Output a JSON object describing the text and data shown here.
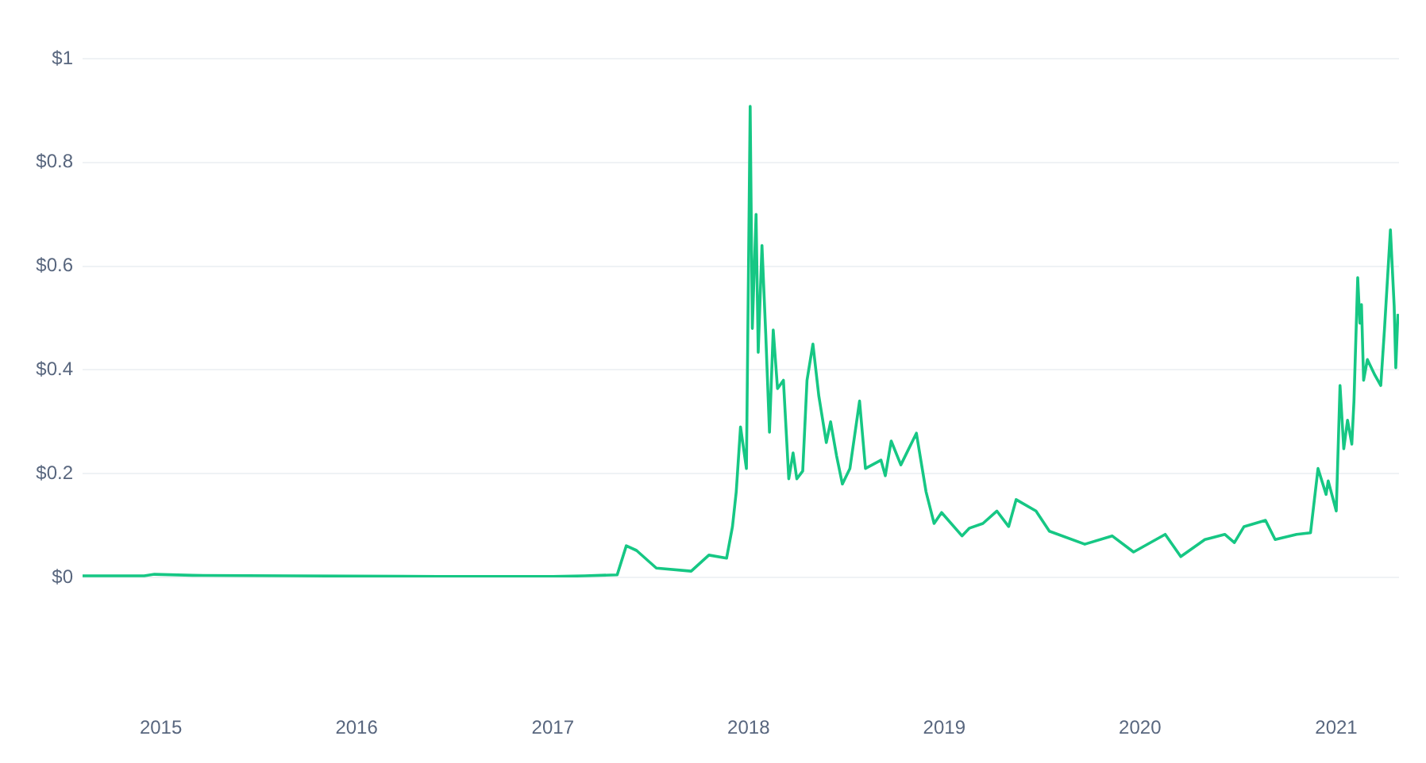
{
  "chart_data": {
    "type": "line",
    "x": [
      "2014-08-08",
      "2014-12-01",
      "2014-12-20",
      "2015-03-01",
      "2015-09-01",
      "2016-06-01",
      "2017-01-01",
      "2017-03-01",
      "2017-05-01",
      "2017-05-18",
      "2017-06-06",
      "2017-07-13",
      "2017-09-16",
      "2017-10-19",
      "2017-11-21",
      "2017-12-02",
      "2017-12-09",
      "2017-12-17",
      "2017-12-28",
      "2018-01-04",
      "2018-01-08",
      "2018-01-15",
      "2018-01-19",
      "2018-01-26",
      "2018-02-02",
      "2018-02-09",
      "2018-02-16",
      "2018-02-24",
      "2018-03-07",
      "2018-03-17",
      "2018-03-25",
      "2018-04-01",
      "2018-04-12",
      "2018-04-20",
      "2018-05-01",
      "2018-05-12",
      "2018-05-26",
      "2018-06-03",
      "2018-06-14",
      "2018-06-25",
      "2018-07-09",
      "2018-07-27",
      "2018-08-07",
      "2018-09-05",
      "2018-09-13",
      "2018-09-24",
      "2018-10-12",
      "2018-11-10",
      "2018-11-28",
      "2018-12-13",
      "2018-12-27",
      "2019-02-03",
      "2019-02-17",
      "2019-03-14",
      "2019-04-09",
      "2019-05-01",
      "2019-05-15",
      "2019-06-21",
      "2019-07-16",
      "2019-09-20",
      "2019-11-10",
      "2019-12-20",
      "2020-02-17",
      "2020-03-17",
      "2020-05-01",
      "2020-06-07",
      "2020-06-25",
      "2020-07-13",
      "2020-08-22",
      "2020-09-09",
      "2020-10-19",
      "2020-11-14",
      "2020-11-28",
      "2020-12-13",
      "2020-12-17",
      "2021-01-01",
      "2021-01-08",
      "2021-01-15",
      "2021-01-22",
      "2021-01-30",
      "2021-02-03",
      "2021-02-10",
      "2021-02-14",
      "2021-02-17",
      "2021-02-21",
      "2021-02-28",
      "2021-03-14",
      "2021-03-25",
      "2021-04-01",
      "2021-04-12",
      "2021-04-19",
      "2021-04-22",
      "2021-04-26"
    ],
    "values": [
      0.003,
      0.003,
      0.006,
      0.004,
      0.003,
      0.002,
      0.002,
      0.003,
      0.005,
      0.061,
      0.052,
      0.018,
      0.012,
      0.043,
      0.037,
      0.098,
      0.165,
      0.29,
      0.21,
      0.908,
      0.48,
      0.7,
      0.434,
      0.64,
      0.47,
      0.28,
      0.477,
      0.364,
      0.38,
      0.19,
      0.24,
      0.19,
      0.205,
      0.38,
      0.45,
      0.35,
      0.26,
      0.3,
      0.235,
      0.18,
      0.21,
      0.34,
      0.21,
      0.226,
      0.196,
      0.263,
      0.217,
      0.278,
      0.165,
      0.104,
      0.125,
      0.08,
      0.095,
      0.104,
      0.128,
      0.098,
      0.15,
      0.128,
      0.089,
      0.064,
      0.08,
      0.049,
      0.083,
      0.04,
      0.073,
      0.083,
      0.067,
      0.098,
      0.11,
      0.073,
      0.083,
      0.086,
      0.21,
      0.16,
      0.186,
      0.128,
      0.37,
      0.248,
      0.303,
      0.257,
      0.34,
      0.578,
      0.49,
      0.526,
      0.38,
      0.42,
      0.39,
      0.37,
      0.48,
      0.67,
      0.523,
      0.404,
      0.508
    ],
    "color": "#16c784",
    "xlim": [
      "2014-08-08",
      "2021-04-28"
    ],
    "xticks": [
      {
        "value": "2015",
        "label": "2015"
      },
      {
        "value": "2016",
        "label": "2016"
      },
      {
        "value": "2017",
        "label": "2017"
      },
      {
        "value": "2018",
        "label": "2018"
      },
      {
        "value": "2019",
        "label": "2019"
      },
      {
        "value": "2020",
        "label": "2020"
      },
      {
        "value": "2021",
        "label": "2021"
      }
    ],
    "ylim": [
      0,
      1
    ],
    "yticks": [
      {
        "value": 0,
        "label": "$0"
      },
      {
        "value": 0.2,
        "label": "$0.2"
      },
      {
        "value": 0.4,
        "label": "$0.4"
      },
      {
        "value": 0.6,
        "label": "$0.6"
      },
      {
        "value": 0.8,
        "label": "$0.8"
      },
      {
        "value": 1,
        "label": "$1"
      }
    ],
    "grid": "y",
    "legend": false
  }
}
